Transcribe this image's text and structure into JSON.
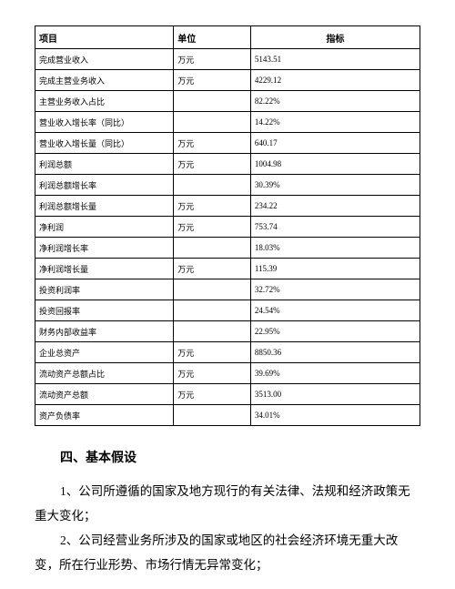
{
  "table": {
    "columns": [
      "项目",
      "单位",
      "指标"
    ],
    "rows": [
      [
        "完成营业收入",
        "万元",
        "5143.51"
      ],
      [
        "完成主营业务收入",
        "万元",
        "4229.12"
      ],
      [
        "主营业务收入占比",
        "",
        "82.22%"
      ],
      [
        "营业收入增长率（同比）",
        "",
        "14.22%"
      ],
      [
        "营业收入增长量（同比）",
        "万元",
        "640.17"
      ],
      [
        "利润总额",
        "万元",
        "1004.98"
      ],
      [
        "利润总额增长率",
        "",
        "30.39%"
      ],
      [
        "利润总额增长量",
        "万元",
        "234.22"
      ],
      [
        "净利润",
        "万元",
        "753.74"
      ],
      [
        "净利润增长率",
        "",
        "18.03%"
      ],
      [
        "净利润增长量",
        "万元",
        "115.39"
      ],
      [
        "投资利润率",
        "",
        "32.72%"
      ],
      [
        "投资回报率",
        "",
        "24.54%"
      ],
      [
        "财务内部收益率",
        "",
        "22.95%"
      ],
      [
        "企业总资产",
        "万元",
        "8850.36"
      ],
      [
        "流动资产总额占比",
        "万元",
        "39.69%"
      ],
      [
        "流动资产总额",
        "万元",
        "3513.00"
      ],
      [
        "资产负债率",
        "",
        "34.01%"
      ]
    ]
  },
  "heading": "四、基本假设",
  "paragraphs": [
    "1、公司所遵循的国家及地方现行的有关法律、法规和经济政策无重大变化；",
    "2、公司经营业务所涉及的国家或地区的社会经济环境无重大改变，所在行业形势、市场行情无异常变化；"
  ]
}
